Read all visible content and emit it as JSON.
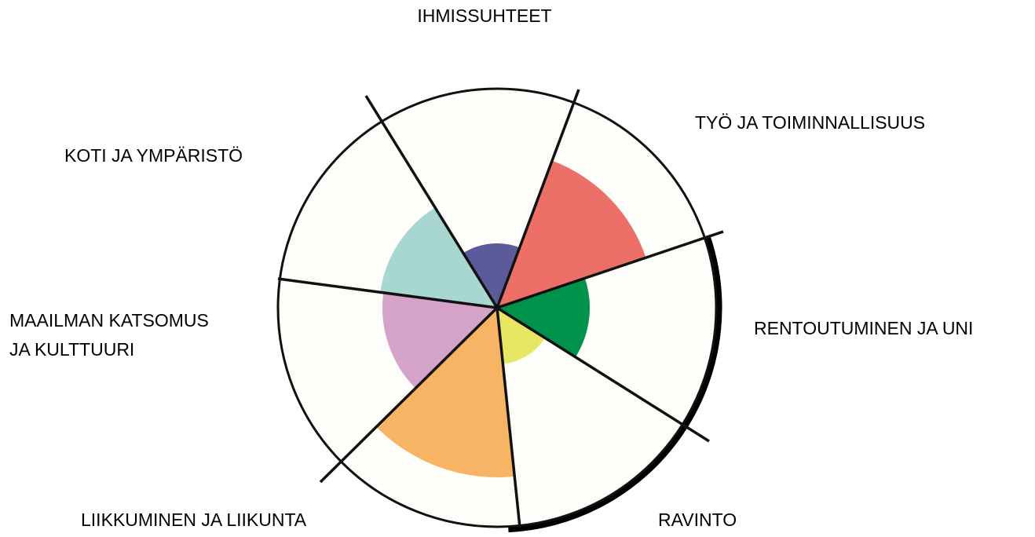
{
  "sectors": [
    {
      "label": "IHMISSUHTEET"
    },
    {
      "label": "TYÖ JA TOIMINNALLISUUS"
    },
    {
      "label": "RENTOUTUMINEN JA UNI"
    },
    {
      "label": "RAVINTO"
    },
    {
      "label": "LIIKKUMINEN JA LIIKUNTA"
    },
    {
      "label_lines": [
        "MAAILMAN KATSOMUS",
        "JA KULTTUURI"
      ]
    },
    {
      "label": "KOTI JA YMPÄRISTÖ"
    }
  ]
}
